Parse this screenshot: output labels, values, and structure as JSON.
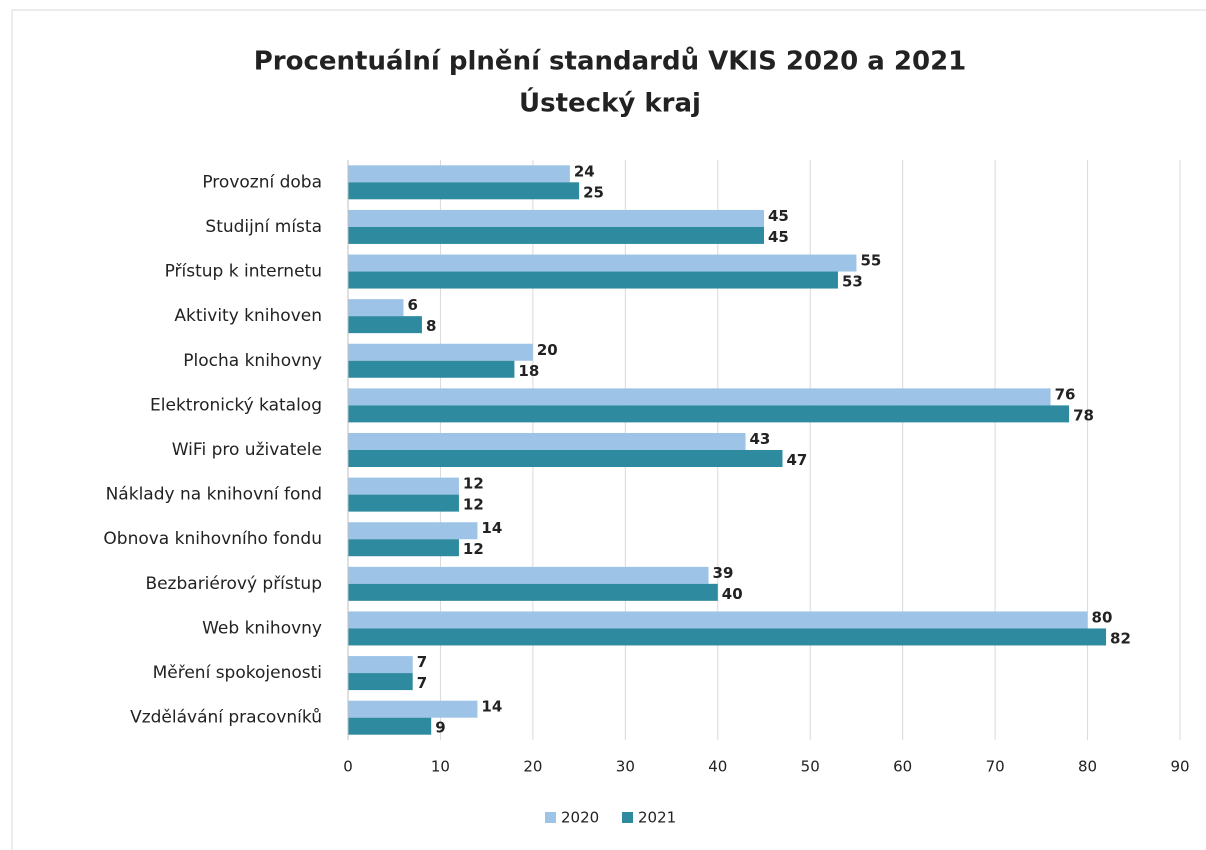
{
  "chart_data": {
    "type": "bar",
    "orientation": "horizontal",
    "title": "Procentuální plnění standardů VKIS 2020 a 2021",
    "subtitle": "Ústecký kraj",
    "categories": [
      "Provozní doba",
      "Studijní místa",
      "Přístup k internetu",
      "Aktivity knihoven",
      "Plocha knihovny",
      "Elektronický katalog",
      "WiFi pro uživatele",
      "Náklady na knihovní fond",
      "Obnova knihovního fondu",
      "Bezbariérový přístup",
      "Web knihovny",
      "Měření spokojenosti",
      "Vzdělávání pracovníků"
    ],
    "series": [
      {
        "name": "2020",
        "color": "#9dc3e6",
        "values": [
          24,
          45,
          55,
          6,
          20,
          76,
          43,
          12,
          14,
          39,
          80,
          7,
          14
        ]
      },
      {
        "name": "2021",
        "color": "#2e8b9f",
        "values": [
          25,
          45,
          53,
          8,
          18,
          78,
          47,
          12,
          12,
          40,
          82,
          7,
          9
        ]
      }
    ],
    "xlim": [
      0,
      90
    ],
    "xticks": [
      0,
      10,
      20,
      30,
      40,
      50,
      60,
      70,
      80,
      90
    ],
    "grid": true,
    "legend": "bottom"
  }
}
